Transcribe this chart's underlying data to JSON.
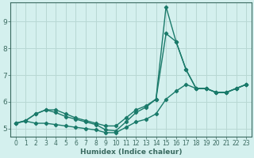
{
  "xlabel": "Humidex (Indice chaleur)",
  "background_color": "#d4f0ee",
  "grid_color": "#b8d8d4",
  "line_color": "#1a7a6a",
  "spine_color": "#3a6a60",
  "xlim": [
    -0.5,
    23.5
  ],
  "ylim": [
    4.7,
    9.7
  ],
  "yticks": [
    5,
    6,
    7,
    8,
    9
  ],
  "xticks": [
    0,
    1,
    2,
    3,
    4,
    5,
    6,
    7,
    8,
    9,
    10,
    11,
    12,
    13,
    14,
    15,
    16,
    17,
    18,
    19,
    20,
    21,
    22,
    23
  ],
  "series": [
    [
      5.2,
      5.3,
      5.55,
      5.7,
      5.7,
      5.55,
      5.4,
      5.3,
      5.2,
      5.1,
      5.1,
      5.4,
      5.7,
      5.85,
      6.1,
      9.55,
      8.25,
      7.2,
      6.5,
      6.5,
      6.35,
      6.35,
      6.5,
      6.65
    ],
    [
      5.2,
      5.3,
      5.55,
      5.7,
      5.6,
      5.45,
      5.35,
      5.25,
      5.15,
      4.95,
      4.92,
      5.25,
      5.6,
      5.8,
      6.1,
      8.55,
      8.25,
      7.2,
      6.5,
      6.5,
      6.35,
      6.35,
      6.5,
      6.65
    ],
    [
      5.2,
      5.28,
      5.2,
      5.2,
      5.15,
      5.1,
      5.05,
      5.0,
      4.95,
      4.85,
      4.85,
      5.05,
      5.25,
      5.35,
      5.55,
      6.1,
      6.4,
      6.65,
      6.5,
      6.5,
      6.35,
      6.35,
      6.5,
      6.65
    ]
  ],
  "marker": "D",
  "marker_size": 2.2,
  "line_width": 1.0,
  "tick_fontsize": 5.5,
  "xlabel_fontsize": 6.5
}
